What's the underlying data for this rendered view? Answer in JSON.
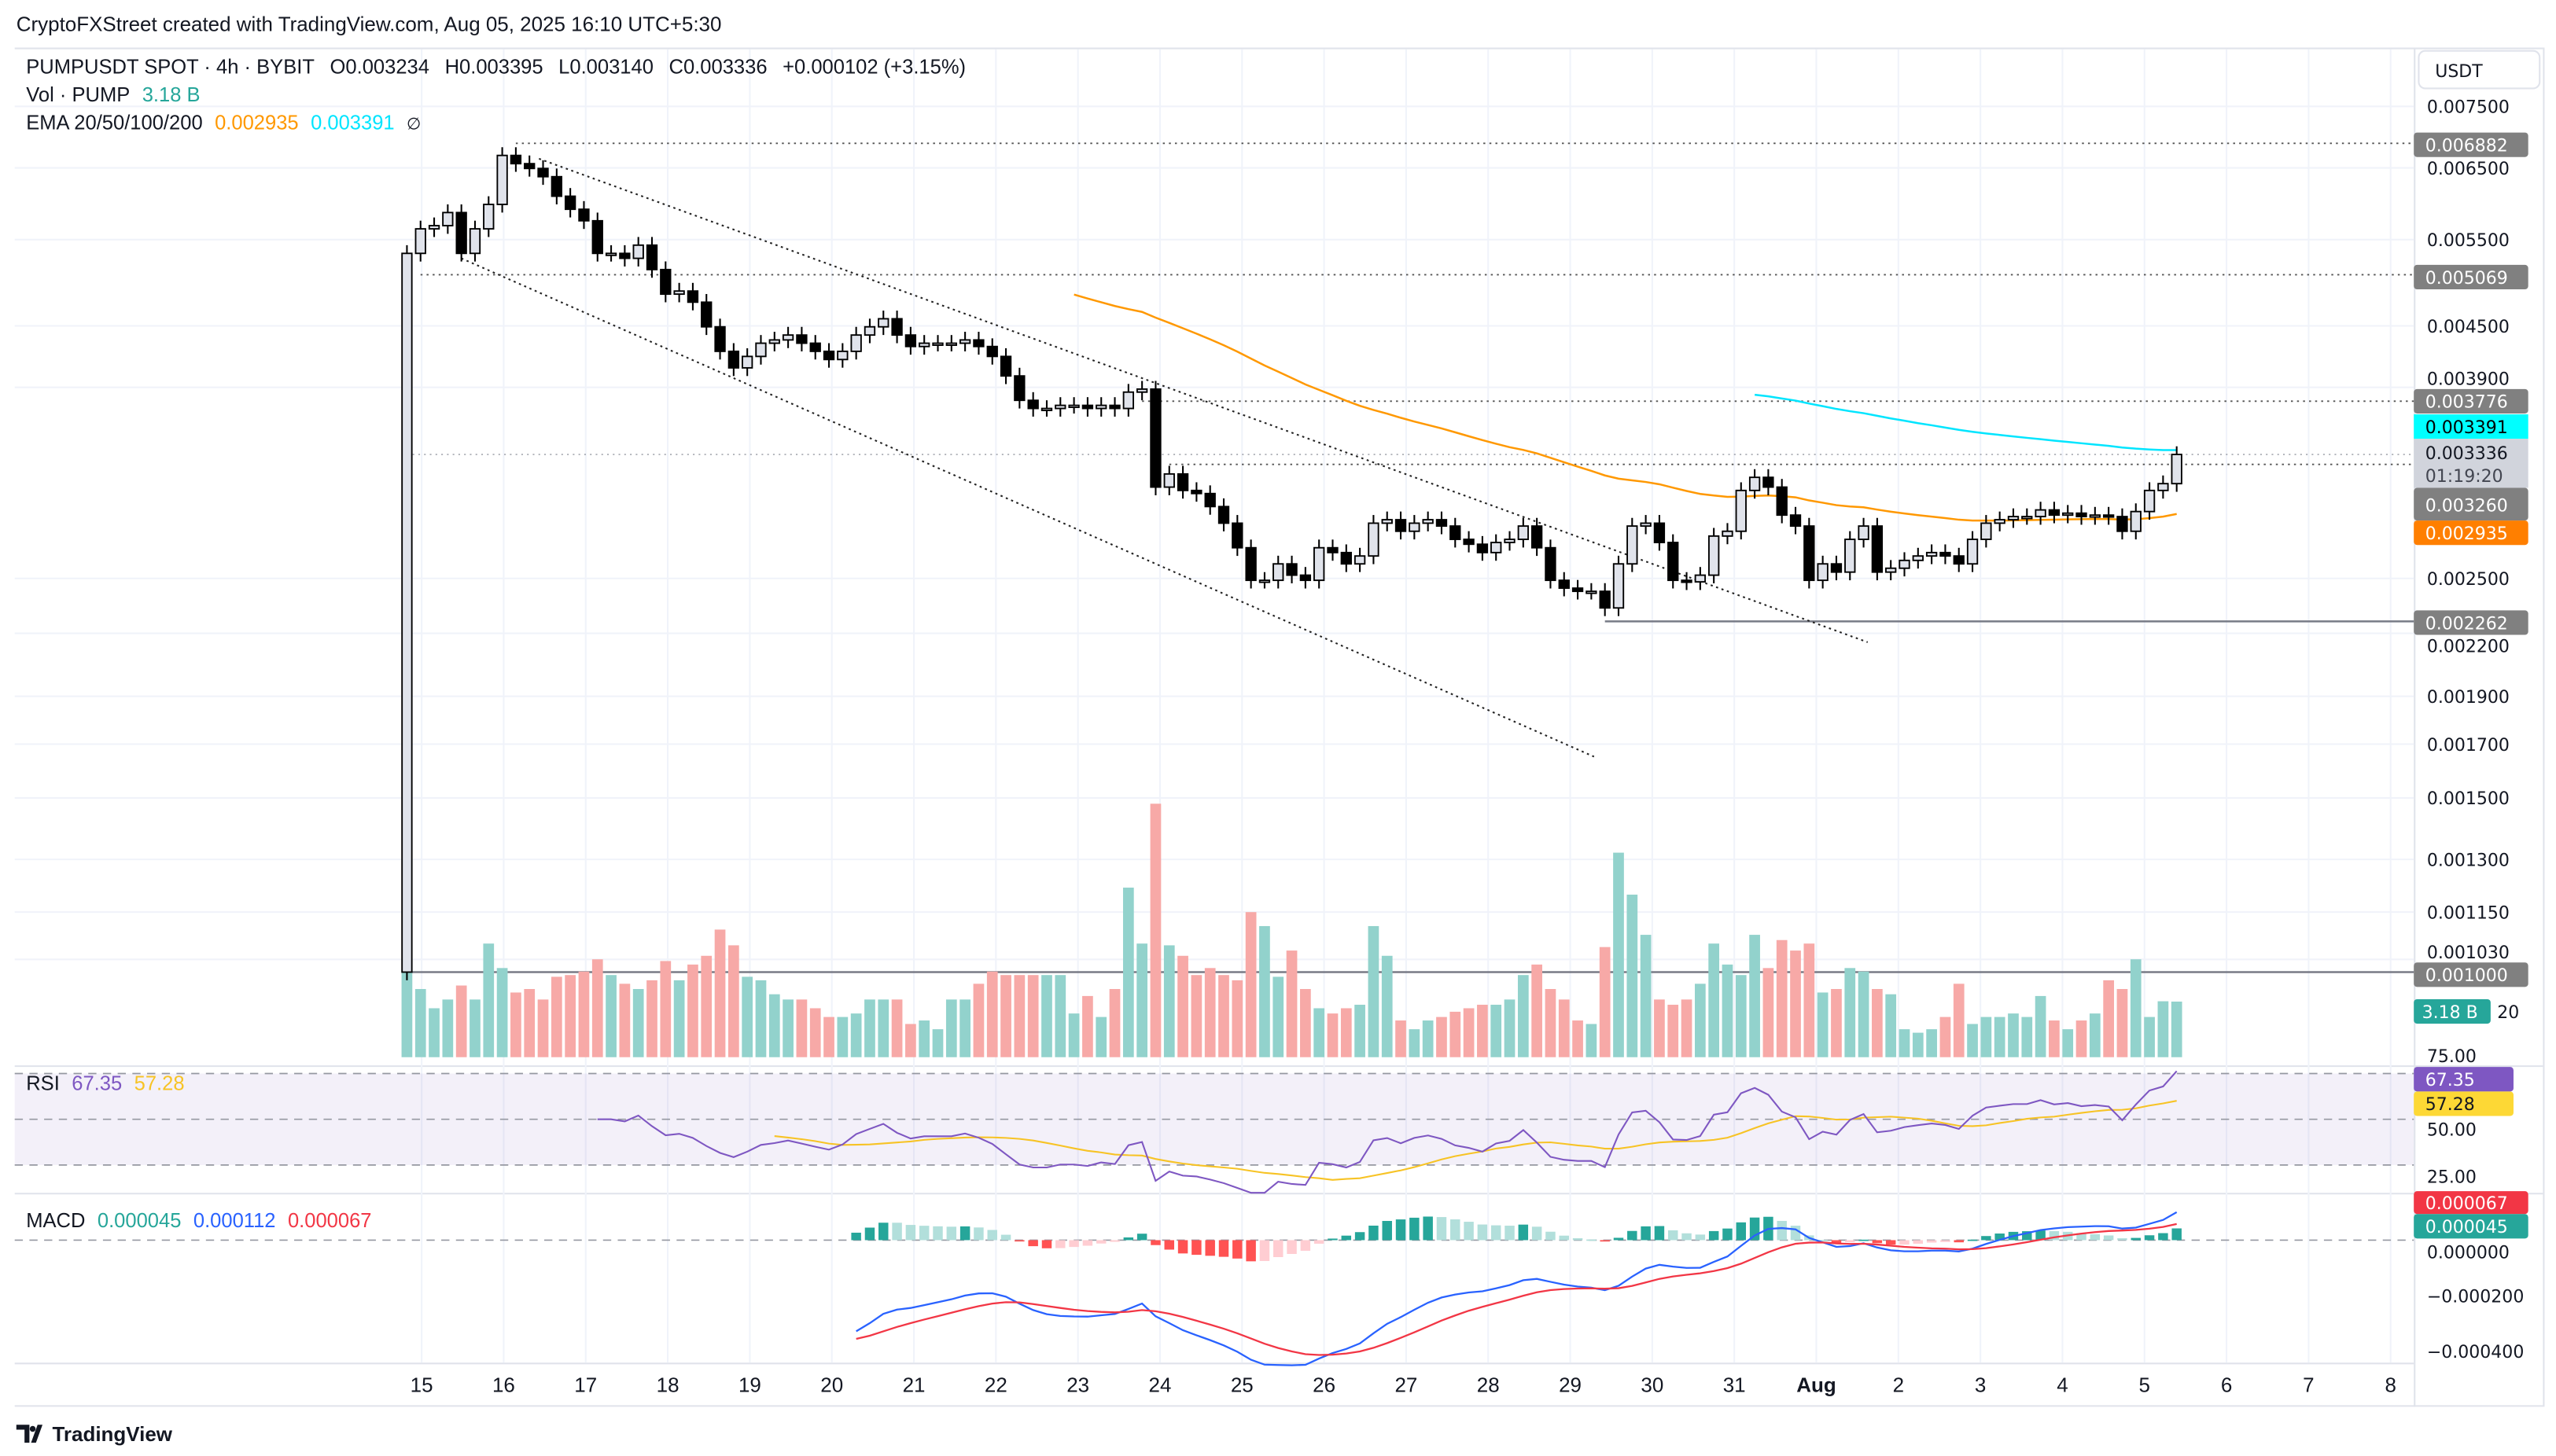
{
  "header": {
    "credit": "CryptoFXStreet created with TradingView.com, Aug 05, 2025 16:10 UTC+5:30"
  },
  "legend": {
    "symbol": "PUMPUSDT SPOT · 4h · BYBIT",
    "o_label": "O",
    "o": "0.003234",
    "h_label": "H",
    "h": "0.003395",
    "l_label": "L",
    "l": "0.003140",
    "c_label": "C",
    "c": "0.003336",
    "change": "+0.000102 (+3.15%)",
    "vol_label": "Vol · PUMP",
    "vol": "3.18 B",
    "ema_label": "EMA 20/50/100/200",
    "ema_a": "0.002935",
    "ema_b": "0.003391",
    "ema_hidden": "∅"
  },
  "indicators": {
    "rsi_label": "RSI",
    "rsi": "67.35",
    "rsi_ma": "57.28",
    "macd_label": "MACD",
    "macd_hist": "0.000045",
    "macd_line": "0.000112",
    "macd_signal": "0.000067"
  },
  "axis": {
    "currency": "USDT",
    "price_ticks": [
      "0.007500",
      "0.006500",
      "0.005500",
      "0.004500",
      "0.003900",
      "0.002500",
      "0.002200",
      "0.001900",
      "0.001700",
      "0.001500",
      "0.001300",
      "0.001150",
      "0.001030"
    ],
    "volume_tick": "20",
    "rsi_ticks": [
      "75.00",
      "50.00",
      "25.00"
    ],
    "macd_ticks": [
      "0.000000",
      "−0.000200",
      "−0.000400"
    ],
    "x_labels": [
      "15",
      "16",
      "17",
      "18",
      "19",
      "20",
      "21",
      "22",
      "23",
      "24",
      "25",
      "26",
      "27",
      "28",
      "29",
      "30",
      "31",
      "Aug",
      "2",
      "3",
      "4",
      "5",
      "6",
      "7",
      "8"
    ]
  },
  "tags": {
    "high": "0.006882",
    "level2": "0.005069",
    "level3": "0.003776",
    "ema_b": "0.003391",
    "last": "0.003336",
    "countdown": "01:19:20",
    "level4": "0.003260",
    "ema_a": "0.002935",
    "low": "0.002262",
    "base": "0.001000",
    "volume": "3.18 B",
    "rsi": "67.35",
    "rsi_ma": "57.28",
    "macd_signal": "0.000067",
    "macd_hist": "0.000045"
  },
  "footer": {
    "brand": "TradingView"
  },
  "colors": {
    "bull_body": "#e0e3eb",
    "bear_body": "#000000",
    "vol_up": "#92d2cc",
    "vol_down": "#f7a9a7",
    "ema_a": "#ff9800",
    "ema_b": "#00e5ff",
    "rsi": "#7e57c2",
    "rsi_ma": "#f7c325",
    "macd_line": "#2962ff",
    "macd_signal": "#f23645",
    "hist_up_strong": "#26a69a",
    "hist_up_weak": "#b2dfdb",
    "hist_down_strong": "#ff5252",
    "hist_down_weak": "#ffcdd2",
    "tag_grey": "#808080"
  },
  "chart_data": {
    "type": "candlestick",
    "title": "PUMPUSDT SPOT · 4h · BYBIT",
    "y_scale": "log",
    "ylim": [
      0.00095,
      0.0078
    ],
    "first_open": 0.001,
    "closes": [
      0.005327,
      0.00564,
      0.005682,
      0.005858,
      0.005327,
      0.00564,
      0.00597,
      0.006691,
      0.006564,
      0.006491,
      0.006368,
      0.006085,
      0.005903,
      0.005747,
      0.005327,
      0.005327,
      0.005266,
      0.00543,
      0.00513,
      0.004845,
      0.00488,
      0.004755,
      0.00449,
      0.004241,
      0.004081,
      0.004191,
      0.004322,
      0.004355,
      0.004405,
      0.004322,
      0.004241,
      0.004161,
      0.004241,
      0.004405,
      0.00449,
      0.004575,
      0.004405,
      0.004289,
      0.004322,
      0.004322,
      0.004322,
      0.004355,
      0.004289,
      0.004191,
      0.004005,
      0.003784,
      0.003713,
      0.003713,
      0.00374,
      0.00374,
      0.003713,
      0.00374,
      0.003713,
      0.003857,
      0.003884,
      0.003092,
      0.003188,
      0.003068,
      0.003046,
      0.002955,
      0.002843,
      0.002685,
      0.002489,
      0.002489,
      0.002586,
      0.002519,
      0.002489,
      0.002685,
      0.002655,
      0.002586,
      0.002634,
      0.002843,
      0.002866,
      0.00279,
      0.002843,
      0.002866,
      0.002824,
      0.002738,
      0.002707,
      0.002655,
      0.002718,
      0.002738,
      0.002824,
      0.002685,
      0.002489,
      0.002444,
      0.002426,
      0.002426,
      0.002334,
      0.002586,
      0.002824,
      0.002843,
      0.002718,
      0.002489,
      0.00248,
      0.002519,
      0.002759,
      0.00279,
      0.003068,
      0.003163,
      0.003092,
      0.002897,
      0.002824,
      0.002489,
      0.002586,
      0.002537,
      0.002738,
      0.002824,
      0.002537,
      0.00256,
      0.002607,
      0.002634,
      0.002655,
      0.002634,
      0.002586,
      0.002738,
      0.002843,
      0.002866,
      0.002887,
      0.002887,
      0.002932,
      0.002897,
      0.00291,
      0.002887,
      0.002897,
      0.002887,
      0.00279,
      0.002921,
      0.003068,
      0.003117,
      0.003336
    ],
    "volumes_b": [
      7.0,
      3.9,
      2.8,
      3.3,
      4.1,
      3.3,
      6.5,
      5.1,
      3.7,
      3.9,
      3.3,
      4.6,
      4.7,
      4.9,
      5.6,
      4.7,
      4.2,
      3.9,
      4.4,
      5.5,
      4.4,
      5.3,
      5.8,
      7.3,
      6.4,
      4.6,
      4.4,
      3.6,
      3.3,
      3.3,
      2.8,
      2.3,
      2.3,
      2.5,
      3.3,
      3.3,
      3.3,
      1.9,
      2.1,
      1.6,
      3.3,
      3.3,
      4.2,
      4.9,
      4.7,
      4.7,
      4.7,
      4.7,
      4.7,
      2.5,
      3.5,
      2.3,
      3.9,
      9.7,
      6.5,
      14.5,
      6.4,
      5.8,
      4.7,
      5.1,
      4.7,
      4.4,
      8.3,
      7.5,
      4.6,
      6.1,
      3.9,
      2.8,
      2.5,
      2.8,
      3.0,
      7.5,
      5.8,
      2.1,
      1.6,
      2.1,
      2.3,
      2.6,
      2.8,
      3.0,
      3.0,
      3.3,
      4.7,
      5.3,
      3.9,
      3.3,
      2.1,
      1.9,
      6.3,
      11.7,
      9.3,
      7.0,
      3.3,
      3.0,
      3.3,
      4.2,
      6.5,
      5.3,
      4.7,
      7.0,
      5.1,
      6.7,
      6.1,
      6.5,
      3.7,
      3.9,
      5.1,
      4.9,
      3.9,
      3.6,
      1.6,
      1.4,
      1.6,
      2.3,
      4.2,
      1.9,
      2.3,
      2.3,
      2.5,
      2.3,
      3.5,
      2.1,
      1.6,
      2.1,
      2.5,
      4.4,
      3.9,
      5.6,
      2.3,
      3.2,
      3.18
    ],
    "levels": [
      {
        "price": 0.006882,
        "from_bar": 8,
        "style": "dotted"
      },
      {
        "price": 0.005069,
        "from_bar": 1,
        "style": "dotted"
      },
      {
        "price": 0.003776,
        "from_bar": 54,
        "style": "dotted"
      },
      {
        "price": 0.003336,
        "from_bar": 0,
        "style": "faint"
      },
      {
        "price": 0.00326,
        "from_bar": 56,
        "style": "dotted"
      },
      {
        "price": 0.002262,
        "from_bar": 88,
        "style": "solid"
      },
      {
        "price": 0.001,
        "from_bar": 0,
        "style": "solid"
      }
    ],
    "trendlines": [
      {
        "from": [
          9.7,
          0.00664
        ],
        "to": [
          107.3,
          0.002155
        ]
      },
      {
        "from": [
          4.0,
          0.005266
        ],
        "to": [
          87.2,
          0.001651
        ]
      }
    ],
    "ema_periods_shown": [
      50,
      100
    ],
    "rsi_period": 14,
    "rsi_ma_period": 14,
    "macd_params": [
      12,
      26,
      9
    ]
  }
}
